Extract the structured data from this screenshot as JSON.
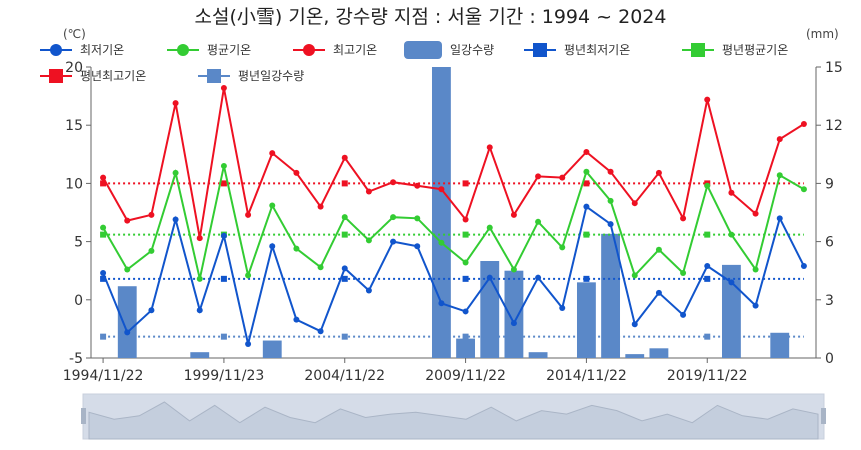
{
  "title": "소설(小雪) 기온, 강수량  지점 : 서울 기간 : 1994 ~ 2024",
  "unit_left": "(℃)",
  "unit_right": "(mm)",
  "chart_data": {
    "type": "line",
    "x": [
      "1994/11/22",
      "1995/11/22",
      "1996/11/22",
      "1997/11/22",
      "1998/11/22",
      "1999/11/23",
      "2000/11/22",
      "2001/11/22",
      "2002/11/22",
      "2003/11/23",
      "2004/11/22",
      "2005/11/22",
      "2006/11/22",
      "2007/11/22",
      "2008/11/22",
      "2009/11/22",
      "2010/11/22",
      "2011/11/23",
      "2012/11/22",
      "2013/11/22",
      "2014/11/22",
      "2015/11/23",
      "2016/11/22",
      "2017/11/22",
      "2018/11/22",
      "2019/11/22",
      "2020/11/22",
      "2021/11/22",
      "2022/11/22",
      "2023/11/22"
    ],
    "x_tick_labels": [
      "1994/11/22",
      "1999/11/23",
      "2004/11/22",
      "2009/11/22",
      "2014/11/22",
      "2019/11/22"
    ],
    "y_left": {
      "min": -5,
      "max": 20,
      "ticks": [
        -5,
        0,
        5,
        10,
        15,
        20
      ]
    },
    "y_right": {
      "min": 0,
      "max": 15,
      "ticks": [
        0,
        3,
        6,
        9,
        12,
        15
      ]
    },
    "legend": {
      "items": [
        {
          "name": "최저기온",
          "color": "#1155cc",
          "kind": "line-circle"
        },
        {
          "name": "평균기온",
          "color": "#33cc33",
          "kind": "line-circle"
        },
        {
          "name": "최고기온",
          "color": "#ee1122",
          "kind": "line-circle"
        },
        {
          "name": "일강수량",
          "color": "#5a88c8",
          "kind": "bar"
        },
        {
          "name": "평년최저기온",
          "color": "#1155cc",
          "kind": "line-square"
        },
        {
          "name": "평년평균기온",
          "color": "#33cc33",
          "kind": "line-square"
        },
        {
          "name": "평년최고기온",
          "color": "#ee1122",
          "kind": "line-square"
        },
        {
          "name": "평년일강수량",
          "color": "#5a88c8",
          "kind": "line-square"
        }
      ]
    },
    "series": [
      {
        "name": "최저기온",
        "axis": "left",
        "color": "#1155cc",
        "values": [
          2.3,
          -2.8,
          -0.9,
          6.9,
          -0.9,
          5.5,
          -3.8,
          4.6,
          -1.7,
          -2.7,
          2.7,
          0.8,
          5.0,
          4.6,
          -0.3,
          -1.0,
          1.9,
          -2.0,
          1.9,
          -0.7,
          8.0,
          6.5,
          -2.1,
          0.6,
          -1.3,
          2.9,
          1.5,
          -0.5,
          7.0,
          2.9
        ]
      },
      {
        "name": "평균기온",
        "axis": "left",
        "color": "#33cc33",
        "values": [
          6.2,
          2.6,
          4.2,
          10.9,
          1.8,
          11.5,
          2.1,
          8.1,
          4.4,
          2.8,
          7.1,
          5.1,
          7.1,
          7.0,
          4.9,
          3.2,
          6.2,
          2.6,
          6.7,
          4.5,
          11.0,
          8.5,
          2.1,
          4.3,
          2.3,
          9.8,
          5.6,
          2.6,
          10.7,
          9.5
        ]
      },
      {
        "name": "최고기온",
        "axis": "left",
        "color": "#ee1122",
        "values": [
          10.5,
          6.8,
          7.3,
          16.9,
          5.3,
          18.2,
          7.3,
          12.6,
          10.9,
          8.0,
          12.2,
          9.3,
          10.1,
          9.8,
          9.5,
          6.9,
          13.1,
          7.3,
          10.6,
          10.5,
          12.7,
          11.0,
          8.3,
          10.9,
          7.0,
          17.2,
          9.2,
          7.4,
          13.8,
          15.1
        ]
      },
      {
        "name": "일강수량",
        "axis": "right",
        "color": "#5a88c8",
        "type": "bar",
        "values": [
          0,
          3.7,
          0,
          0,
          0.3,
          0,
          0,
          0.9,
          0,
          0,
          0,
          0,
          0,
          0,
          15.0,
          1.0,
          5.0,
          4.5,
          0.3,
          0,
          3.9,
          6.4,
          0.2,
          0.5,
          0,
          0,
          4.8,
          0,
          1.3,
          0
        ]
      },
      {
        "name": "평년최저기온",
        "axis": "left",
        "color": "#1155cc",
        "dashed": true,
        "value": 1.8
      },
      {
        "name": "평년평균기온",
        "axis": "left",
        "color": "#33cc33",
        "dashed": true,
        "value": 5.6
      },
      {
        "name": "평년최고기온",
        "axis": "left",
        "color": "#ee1122",
        "dashed": true,
        "value": 10.0
      },
      {
        "name": "평년일강수량",
        "axis": "right",
        "color": "#5a88c8",
        "dashed": true,
        "value": 1.1
      }
    ],
    "grid": false,
    "legend_placement": "top"
  },
  "overview": {
    "values": [
      1.2,
      0.8,
      1.0,
      1.8,
      0.7,
      1.6,
      0.6,
      1.5,
      0.9,
      0.6,
      1.4,
      0.9,
      1.1,
      1.2,
      1.0,
      0.8,
      1.5,
      0.7,
      1.3,
      1.1,
      1.6,
      1.3,
      0.7,
      1.1,
      0.6,
      1.6,
      1.0,
      0.8,
      1.4,
      1.1
    ]
  }
}
